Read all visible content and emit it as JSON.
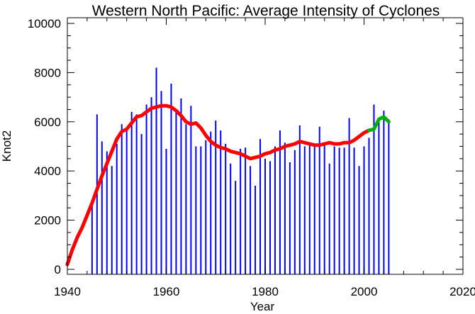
{
  "chart_data": {
    "type": "bar",
    "title": "Western North Pacific: Average Intensity of Cyclones",
    "xlabel": "Year",
    "ylabel": "Knot2",
    "xlim": [
      1940,
      2020
    ],
    "ylim": [
      0,
      10000
    ],
    "x_ticks": [
      "1940",
      "1960",
      "1980",
      "2000",
      "2020"
    ],
    "y_ticks": [
      "0",
      "2000",
      "4000",
      "6000",
      "8000",
      "10000"
    ],
    "grid": false,
    "colors": {
      "bars": "#0000ff",
      "smooth_red": "#ff0000",
      "smooth_green": "#00b000",
      "axes": "#000000"
    },
    "bars": {
      "x": [
        1945,
        1946,
        1947,
        1948,
        1949,
        1950,
        1951,
        1952,
        1953,
        1954,
        1955,
        1956,
        1957,
        1958,
        1959,
        1960,
        1961,
        1962,
        1963,
        1964,
        1965,
        1966,
        1967,
        1968,
        1969,
        1970,
        1971,
        1972,
        1973,
        1974,
        1975,
        1976,
        1977,
        1978,
        1979,
        1980,
        1981,
        1982,
        1983,
        1984,
        1985,
        1986,
        1987,
        1988,
        1989,
        1990,
        1991,
        1992,
        1993,
        1994,
        1995,
        1996,
        1997,
        1998,
        1999,
        2000,
        2001,
        2002,
        2003,
        2004,
        2005
      ],
      "values": [
        2800,
        6300,
        5200,
        4800,
        4200,
        5100,
        5900,
        5700,
        6400,
        6300,
        5500,
        6700,
        7000,
        8200,
        7250,
        4900,
        7550,
        6500,
        6950,
        5900,
        6650,
        5000,
        5000,
        5250,
        5600,
        6050,
        5650,
        5100,
        4300,
        3600,
        4900,
        4950,
        4200,
        3400,
        5300,
        4500,
        4400,
        5000,
        5650,
        5150,
        4350,
        4850,
        5850,
        5000,
        5050,
        5100,
        5800,
        5100,
        4300,
        5000,
        4950,
        4950,
        6150,
        4950,
        4200,
        5000,
        5350,
        6700,
        6000,
        6450,
        6100
      ]
    },
    "series": [
      {
        "color": "#ff0000",
        "x": [
          1940,
          1941,
          1942,
          1943,
          1944,
          1945,
          1946,
          1947,
          1948,
          1949,
          1950,
          1951,
          1952,
          1953,
          1954,
          1955,
          1956,
          1957,
          1958,
          1959,
          1960,
          1961,
          1962,
          1963,
          1964,
          1965,
          1966,
          1967,
          1968,
          1969,
          1970,
          1971,
          1972,
          1973,
          1974,
          1975,
          1976,
          1977,
          1978,
          1979,
          1980,
          1981,
          1982,
          1983,
          1984,
          1985,
          1986,
          1987,
          1988,
          1989,
          1990,
          1991,
          1992,
          1993,
          1994,
          1995,
          1996,
          1997,
          1998,
          1999,
          2000,
          2001
        ],
        "values": [
          200,
          800,
          1300,
          1700,
          2200,
          2700,
          3250,
          3800,
          4300,
          4800,
          5300,
          5600,
          5700,
          5950,
          6200,
          6250,
          6400,
          6550,
          6600,
          6650,
          6650,
          6600,
          6450,
          6250,
          6000,
          5900,
          5950,
          5750,
          5450,
          5200,
          5050,
          4950,
          4900,
          4800,
          4750,
          4700,
          4600,
          4500,
          4550,
          4600,
          4700,
          4750,
          4850,
          4900,
          5000,
          5050,
          5100,
          5200,
          5150,
          5100,
          5050,
          5050,
          5100,
          5150,
          5100,
          5100,
          5150,
          5150,
          5250,
          5400,
          5550,
          5650
        ]
      },
      {
        "color": "#00b000",
        "x": [
          2001,
          2002,
          2003,
          2004,
          2005
        ],
        "values": [
          5650,
          5700,
          6100,
          6200,
          6000
        ]
      }
    ]
  }
}
